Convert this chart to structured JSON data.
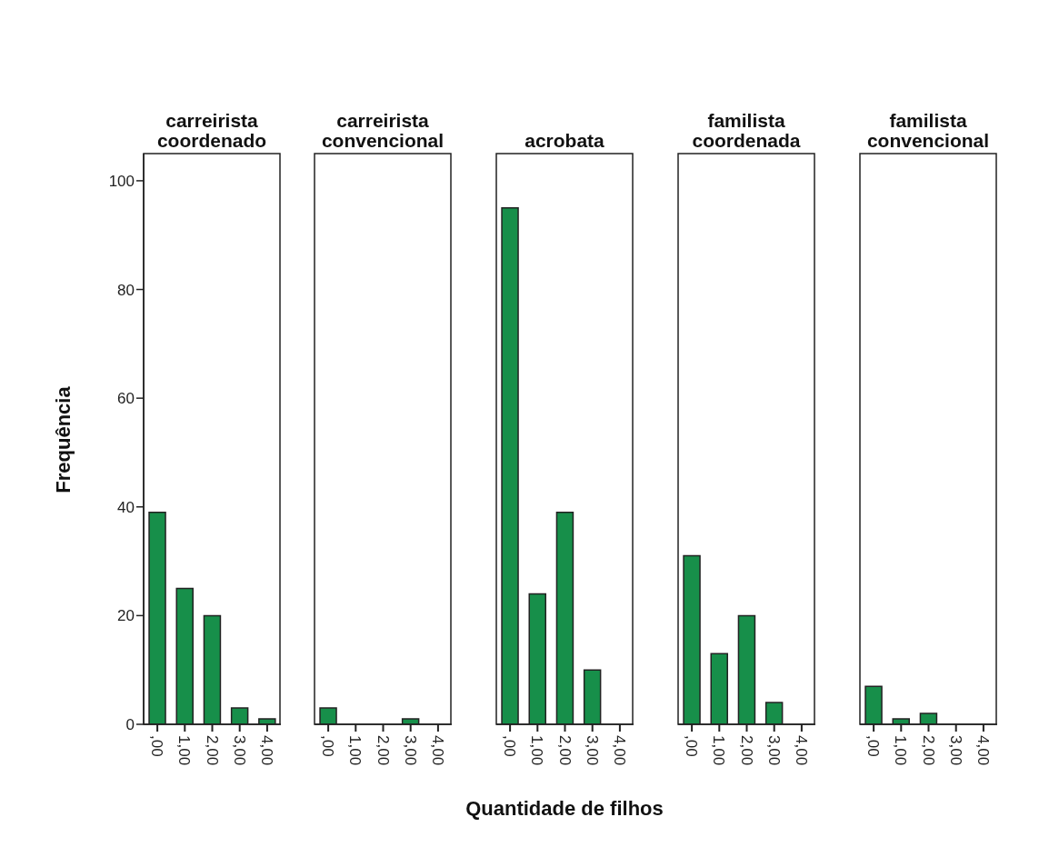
{
  "chart_data": [
    {
      "type": "bar",
      "title": "carreirista coordenado",
      "ylabel": "Frequência",
      "categories": [
        ",00",
        "1,00",
        "2,00",
        "3,00",
        "4,00"
      ],
      "values": [
        39,
        25,
        20,
        3,
        1
      ],
      "color": "#178f4a",
      "ylim": [
        0,
        105
      ],
      "yticks": [
        0,
        20,
        40,
        60,
        80,
        100
      ]
    },
    {
      "type": "bar",
      "title": "carreirista convencional",
      "categories": [
        ",00",
        "1,00",
        "2,00",
        "3,00",
        "4,00"
      ],
      "values": [
        3,
        0,
        0,
        1,
        0
      ],
      "color": "#178f4a",
      "ylim": [
        0,
        105
      ],
      "yticks": [
        0,
        20,
        40,
        60,
        80,
        100
      ],
      "tick_labels": "x"
    },
    {
      "type": "bar",
      "title": "acrobata",
      "xlabel": "Quantidade de filhos",
      "categories": [
        ",00",
        "1,00",
        "2,00",
        "3,00",
        "4,00"
      ],
      "values": [
        95,
        24,
        39,
        10,
        0
      ],
      "color": "#178f4a",
      "ylim": [
        0,
        105
      ],
      "yticks": [
        0,
        20,
        40,
        60,
        80,
        100
      ],
      "tick_labels": "x"
    },
    {
      "type": "bar",
      "title": "familista coordenada",
      "categories": [
        ",00",
        "1,00",
        "2,00",
        "3,00",
        "4,00"
      ],
      "values": [
        31,
        13,
        20,
        4,
        0
      ],
      "color": "#178f4a",
      "ylim": [
        0,
        105
      ],
      "yticks": [
        0,
        20,
        40,
        60,
        80,
        100
      ],
      "tick_labels": "x"
    },
    {
      "type": "bar",
      "title": "familista convencional",
      "categories": [
        ",00",
        "1,00",
        "2,00",
        "3,00",
        "4,00"
      ],
      "values": [
        7,
        1,
        2,
        0,
        0
      ],
      "color": "#178f4a",
      "ylim": [
        0,
        105
      ],
      "yticks": [
        0,
        20,
        40,
        60,
        80,
        100
      ],
      "tick_labels": "x"
    }
  ]
}
